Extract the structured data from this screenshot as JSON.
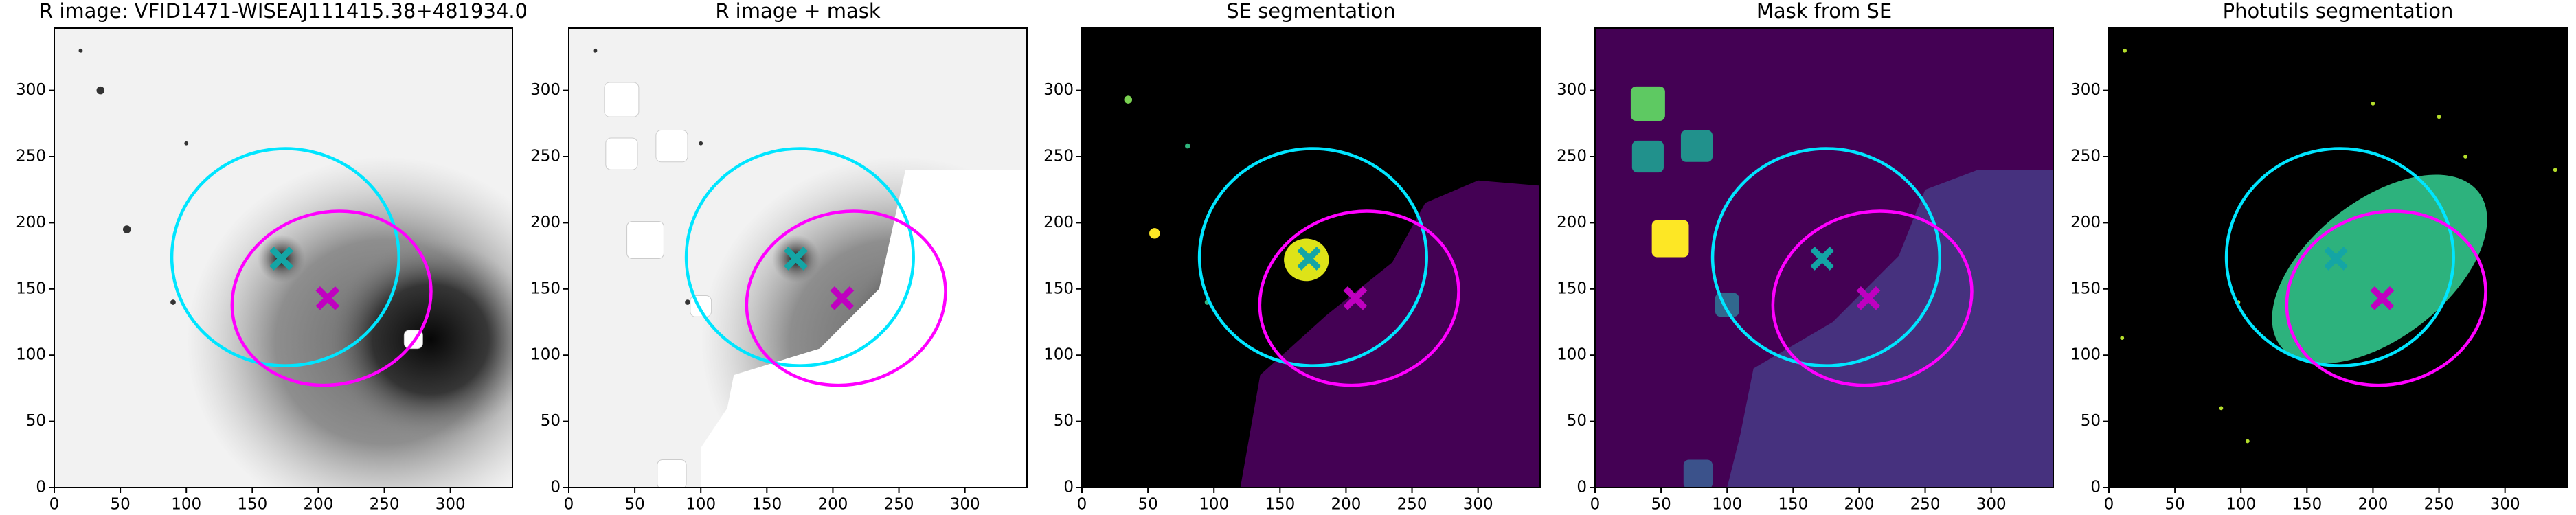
{
  "chart_data": [
    {
      "type": "image",
      "title": "R image: VFID1471-WISEAJ111415.38+481934.0",
      "background": "#f2f2f2",
      "xlim": [
        0,
        347
      ],
      "ylim": [
        0,
        347
      ],
      "xticks": [
        0,
        50,
        100,
        150,
        200,
        250,
        300
      ],
      "yticks": [
        0,
        50,
        100,
        150,
        200,
        250,
        300
      ],
      "ellipses": [
        {
          "cx": 175,
          "cy": 174,
          "rx": 86,
          "ry": 82,
          "angle": 0,
          "color": "#00e5ff"
        },
        {
          "cx": 210,
          "cy": 143,
          "rx": 76,
          "ry": 65,
          "angle": 15,
          "color": "#ff00ff"
        }
      ],
      "markers": [
        {
          "x": 172,
          "y": 173,
          "color": "#14a5a5"
        },
        {
          "x": 207,
          "y": 143,
          "color": "#c000c0"
        }
      ]
    },
    {
      "type": "image",
      "title": "R image + mask",
      "background": "#f2f2f2",
      "xlim": [
        0,
        347
      ],
      "ylim": [
        0,
        347
      ],
      "xticks": [
        0,
        50,
        100,
        150,
        200,
        250,
        300
      ],
      "yticks": [
        0,
        50,
        100,
        150,
        200,
        250,
        300
      ],
      "ellipses": [
        {
          "cx": 175,
          "cy": 174,
          "rx": 86,
          "ry": 82,
          "angle": 0,
          "color": "#00e5ff"
        },
        {
          "cx": 210,
          "cy": 143,
          "rx": 76,
          "ry": 65,
          "angle": 15,
          "color": "#ff00ff"
        }
      ],
      "markers": [
        {
          "x": 172,
          "y": 173,
          "color": "#14a5a5"
        },
        {
          "x": 207,
          "y": 143,
          "color": "#c000c0"
        }
      ]
    },
    {
      "type": "image",
      "title": "SE segmentation",
      "background": "#000000",
      "xlim": [
        0,
        347
      ],
      "ylim": [
        0,
        347
      ],
      "xticks": [
        0,
        50,
        100,
        150,
        200,
        250,
        300
      ],
      "yticks": [
        0,
        50,
        100,
        150,
        200,
        250,
        300
      ],
      "ellipses": [
        {
          "cx": 175,
          "cy": 174,
          "rx": 86,
          "ry": 82,
          "angle": 0,
          "color": "#00e5ff"
        },
        {
          "cx": 210,
          "cy": 143,
          "rx": 76,
          "ry": 65,
          "angle": 15,
          "color": "#ff00ff"
        }
      ],
      "markers": [
        {
          "x": 172,
          "y": 173,
          "color": "#14a5a5"
        },
        {
          "x": 207,
          "y": 143,
          "color": "#c000c0"
        }
      ]
    },
    {
      "type": "image",
      "title": "Mask from SE",
      "background": "#440154",
      "xlim": [
        0,
        347
      ],
      "ylim": [
        0,
        347
      ],
      "xticks": [
        0,
        50,
        100,
        150,
        200,
        250,
        300
      ],
      "yticks": [
        0,
        50,
        100,
        150,
        200,
        250,
        300
      ],
      "ellipses": [
        {
          "cx": 175,
          "cy": 174,
          "rx": 86,
          "ry": 82,
          "angle": 0,
          "color": "#00e5ff"
        },
        {
          "cx": 210,
          "cy": 143,
          "rx": 76,
          "ry": 65,
          "angle": 15,
          "color": "#ff00ff"
        }
      ],
      "markers": [
        {
          "x": 172,
          "y": 173,
          "color": "#14a5a5"
        },
        {
          "x": 207,
          "y": 143,
          "color": "#c000c0"
        }
      ]
    },
    {
      "type": "image",
      "title": "Photutils segmentation",
      "background": "#000000",
      "xlim": [
        0,
        347
      ],
      "ylim": [
        0,
        347
      ],
      "xticks": [
        0,
        50,
        100,
        150,
        200,
        250,
        300
      ],
      "yticks": [
        0,
        50,
        100,
        150,
        200,
        250,
        300
      ],
      "ellipses": [
        {
          "cx": 175,
          "cy": 174,
          "rx": 86,
          "ry": 82,
          "angle": 0,
          "color": "#00e5ff"
        },
        {
          "cx": 210,
          "cy": 143,
          "rx": 76,
          "ry": 65,
          "angle": 15,
          "color": "#ff00ff"
        }
      ],
      "markers": [
        {
          "x": 172,
          "y": 173,
          "color": "#14a5a5"
        },
        {
          "x": 207,
          "y": 143,
          "color": "#c000c0"
        }
      ]
    }
  ]
}
